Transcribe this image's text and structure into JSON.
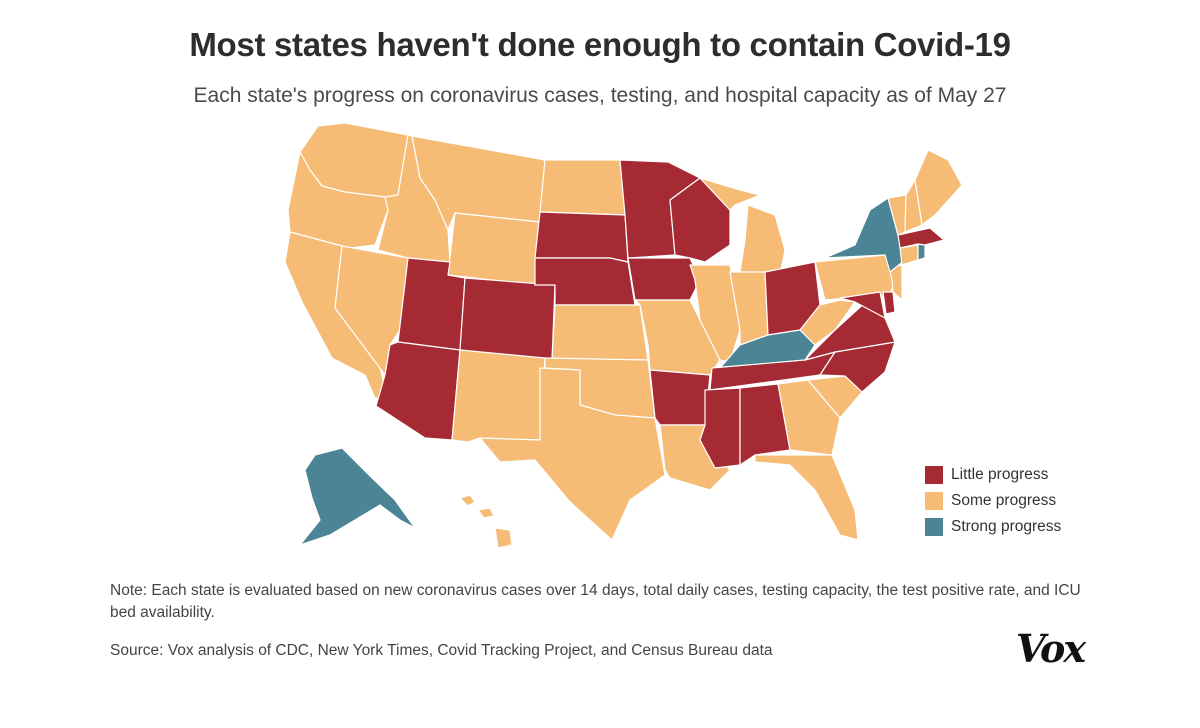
{
  "title": "Most states haven't done enough to contain Covid-19",
  "subtitle": "Each state's progress on coronavirus cases, testing, and hospital capacity as of May 27",
  "colors": {
    "little": "#a52a34",
    "some": "#f6bb74",
    "strong": "#4b8495"
  },
  "legend": [
    {
      "key": "little",
      "label": "Little progress"
    },
    {
      "key": "some",
      "label": "Some progress"
    },
    {
      "key": "strong",
      "label": "Strong progress"
    }
  ],
  "states": {
    "WA": "some",
    "OR": "some",
    "CA": "some",
    "ID": "some",
    "NV": "some",
    "MT": "some",
    "WY": "some",
    "UT": "little",
    "AZ": "little",
    "CO": "little",
    "NM": "some",
    "ND": "some",
    "SD": "little",
    "NE": "little",
    "KS": "some",
    "OK": "some",
    "TX": "some",
    "MN": "little",
    "IA": "little",
    "MO": "some",
    "AR": "little",
    "LA": "some",
    "WI": "little",
    "IL": "some",
    "MI": "some",
    "IN": "some",
    "OH": "little",
    "KY": "strong",
    "TN": "little",
    "MS": "little",
    "AL": "little",
    "GA": "some",
    "FL": "some",
    "SC": "some",
    "NC": "little",
    "VA": "little",
    "WV": "some",
    "PA": "some",
    "NY": "strong",
    "NJ": "some",
    "DE": "little",
    "MD": "little",
    "CT": "some",
    "RI": "strong",
    "MA": "little",
    "VT": "some",
    "NH": "some",
    "ME": "some",
    "AK": "strong",
    "HI": "some"
  },
  "note": "Note: Each state is evaluated based on new coronavirus cases over 14 days, total daily cases, testing capacity, the test positive rate, and ICU bed availability.",
  "source": "Source: Vox analysis of CDC, New York Times, Covid Tracking Project, and Census Bureau data",
  "logo": "Vox"
}
